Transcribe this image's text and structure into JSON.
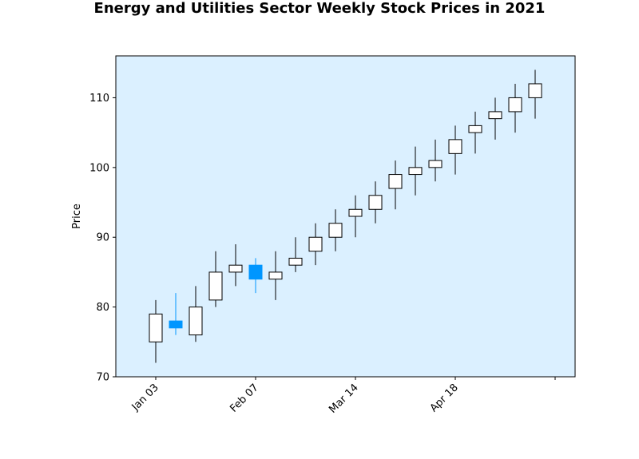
{
  "chart_data": {
    "type": "candlestick",
    "title": "Energy and Utilities Sector Weekly Stock Prices in 2021",
    "xlabel": "",
    "ylabel": "Price",
    "ylim": [
      70,
      116
    ],
    "yticks": [
      70,
      80,
      90,
      100,
      110
    ],
    "xtick_labels": [
      "Jan 03",
      "Feb 07",
      "Mar 14",
      "Apr 18",
      ""
    ],
    "xtick_weeks": [
      0,
      5,
      10,
      15,
      20
    ],
    "x_range_weeks": [
      -2,
      21
    ],
    "grid": false,
    "colors": {
      "background": "#dbf0ff",
      "up_fill": "#ffffff",
      "up_edge": "#000000",
      "down_fill": "#0096ff",
      "down_edge": "#0096ff",
      "frame": "#000000"
    },
    "candles": [
      {
        "date": "2021-01-03",
        "open": 75,
        "high": 81,
        "low": 72,
        "close": 79
      },
      {
        "date": "2021-01-10",
        "open": 78,
        "high": 82,
        "low": 76,
        "close": 77
      },
      {
        "date": "2021-01-17",
        "open": 76,
        "high": 83,
        "low": 75,
        "close": 80
      },
      {
        "date": "2021-01-24",
        "open": 81,
        "high": 88,
        "low": 80,
        "close": 85
      },
      {
        "date": "2021-01-31",
        "open": 85,
        "high": 89,
        "low": 83,
        "close": 86
      },
      {
        "date": "2021-02-07",
        "open": 86,
        "high": 87,
        "low": 82,
        "close": 84
      },
      {
        "date": "2021-02-14",
        "open": 84,
        "high": 88,
        "low": 81,
        "close": 85
      },
      {
        "date": "2021-02-21",
        "open": 86,
        "high": 90,
        "low": 85,
        "close": 87
      },
      {
        "date": "2021-02-28",
        "open": 88,
        "high": 92,
        "low": 86,
        "close": 90
      },
      {
        "date": "2021-03-07",
        "open": 90,
        "high": 94,
        "low": 88,
        "close": 92
      },
      {
        "date": "2021-03-14",
        "open": 93,
        "high": 96,
        "low": 90,
        "close": 94
      },
      {
        "date": "2021-03-21",
        "open": 94,
        "high": 98,
        "low": 92,
        "close": 96
      },
      {
        "date": "2021-03-28",
        "open": 97,
        "high": 101,
        "low": 94,
        "close": 99
      },
      {
        "date": "2021-04-04",
        "open": 99,
        "high": 103,
        "low": 96,
        "close": 100
      },
      {
        "date": "2021-04-11",
        "open": 100,
        "high": 104,
        "low": 98,
        "close": 101
      },
      {
        "date": "2021-04-18",
        "open": 102,
        "high": 106,
        "low": 99,
        "close": 104
      },
      {
        "date": "2021-04-25",
        "open": 105,
        "high": 108,
        "low": 102,
        "close": 106
      },
      {
        "date": "2021-05-02",
        "open": 107,
        "high": 110,
        "low": 104,
        "close": 108
      },
      {
        "date": "2021-05-09",
        "open": 108,
        "high": 112,
        "low": 105,
        "close": 110
      },
      {
        "date": "2021-05-16",
        "open": 110,
        "high": 114,
        "low": 107,
        "close": 112
      }
    ]
  }
}
